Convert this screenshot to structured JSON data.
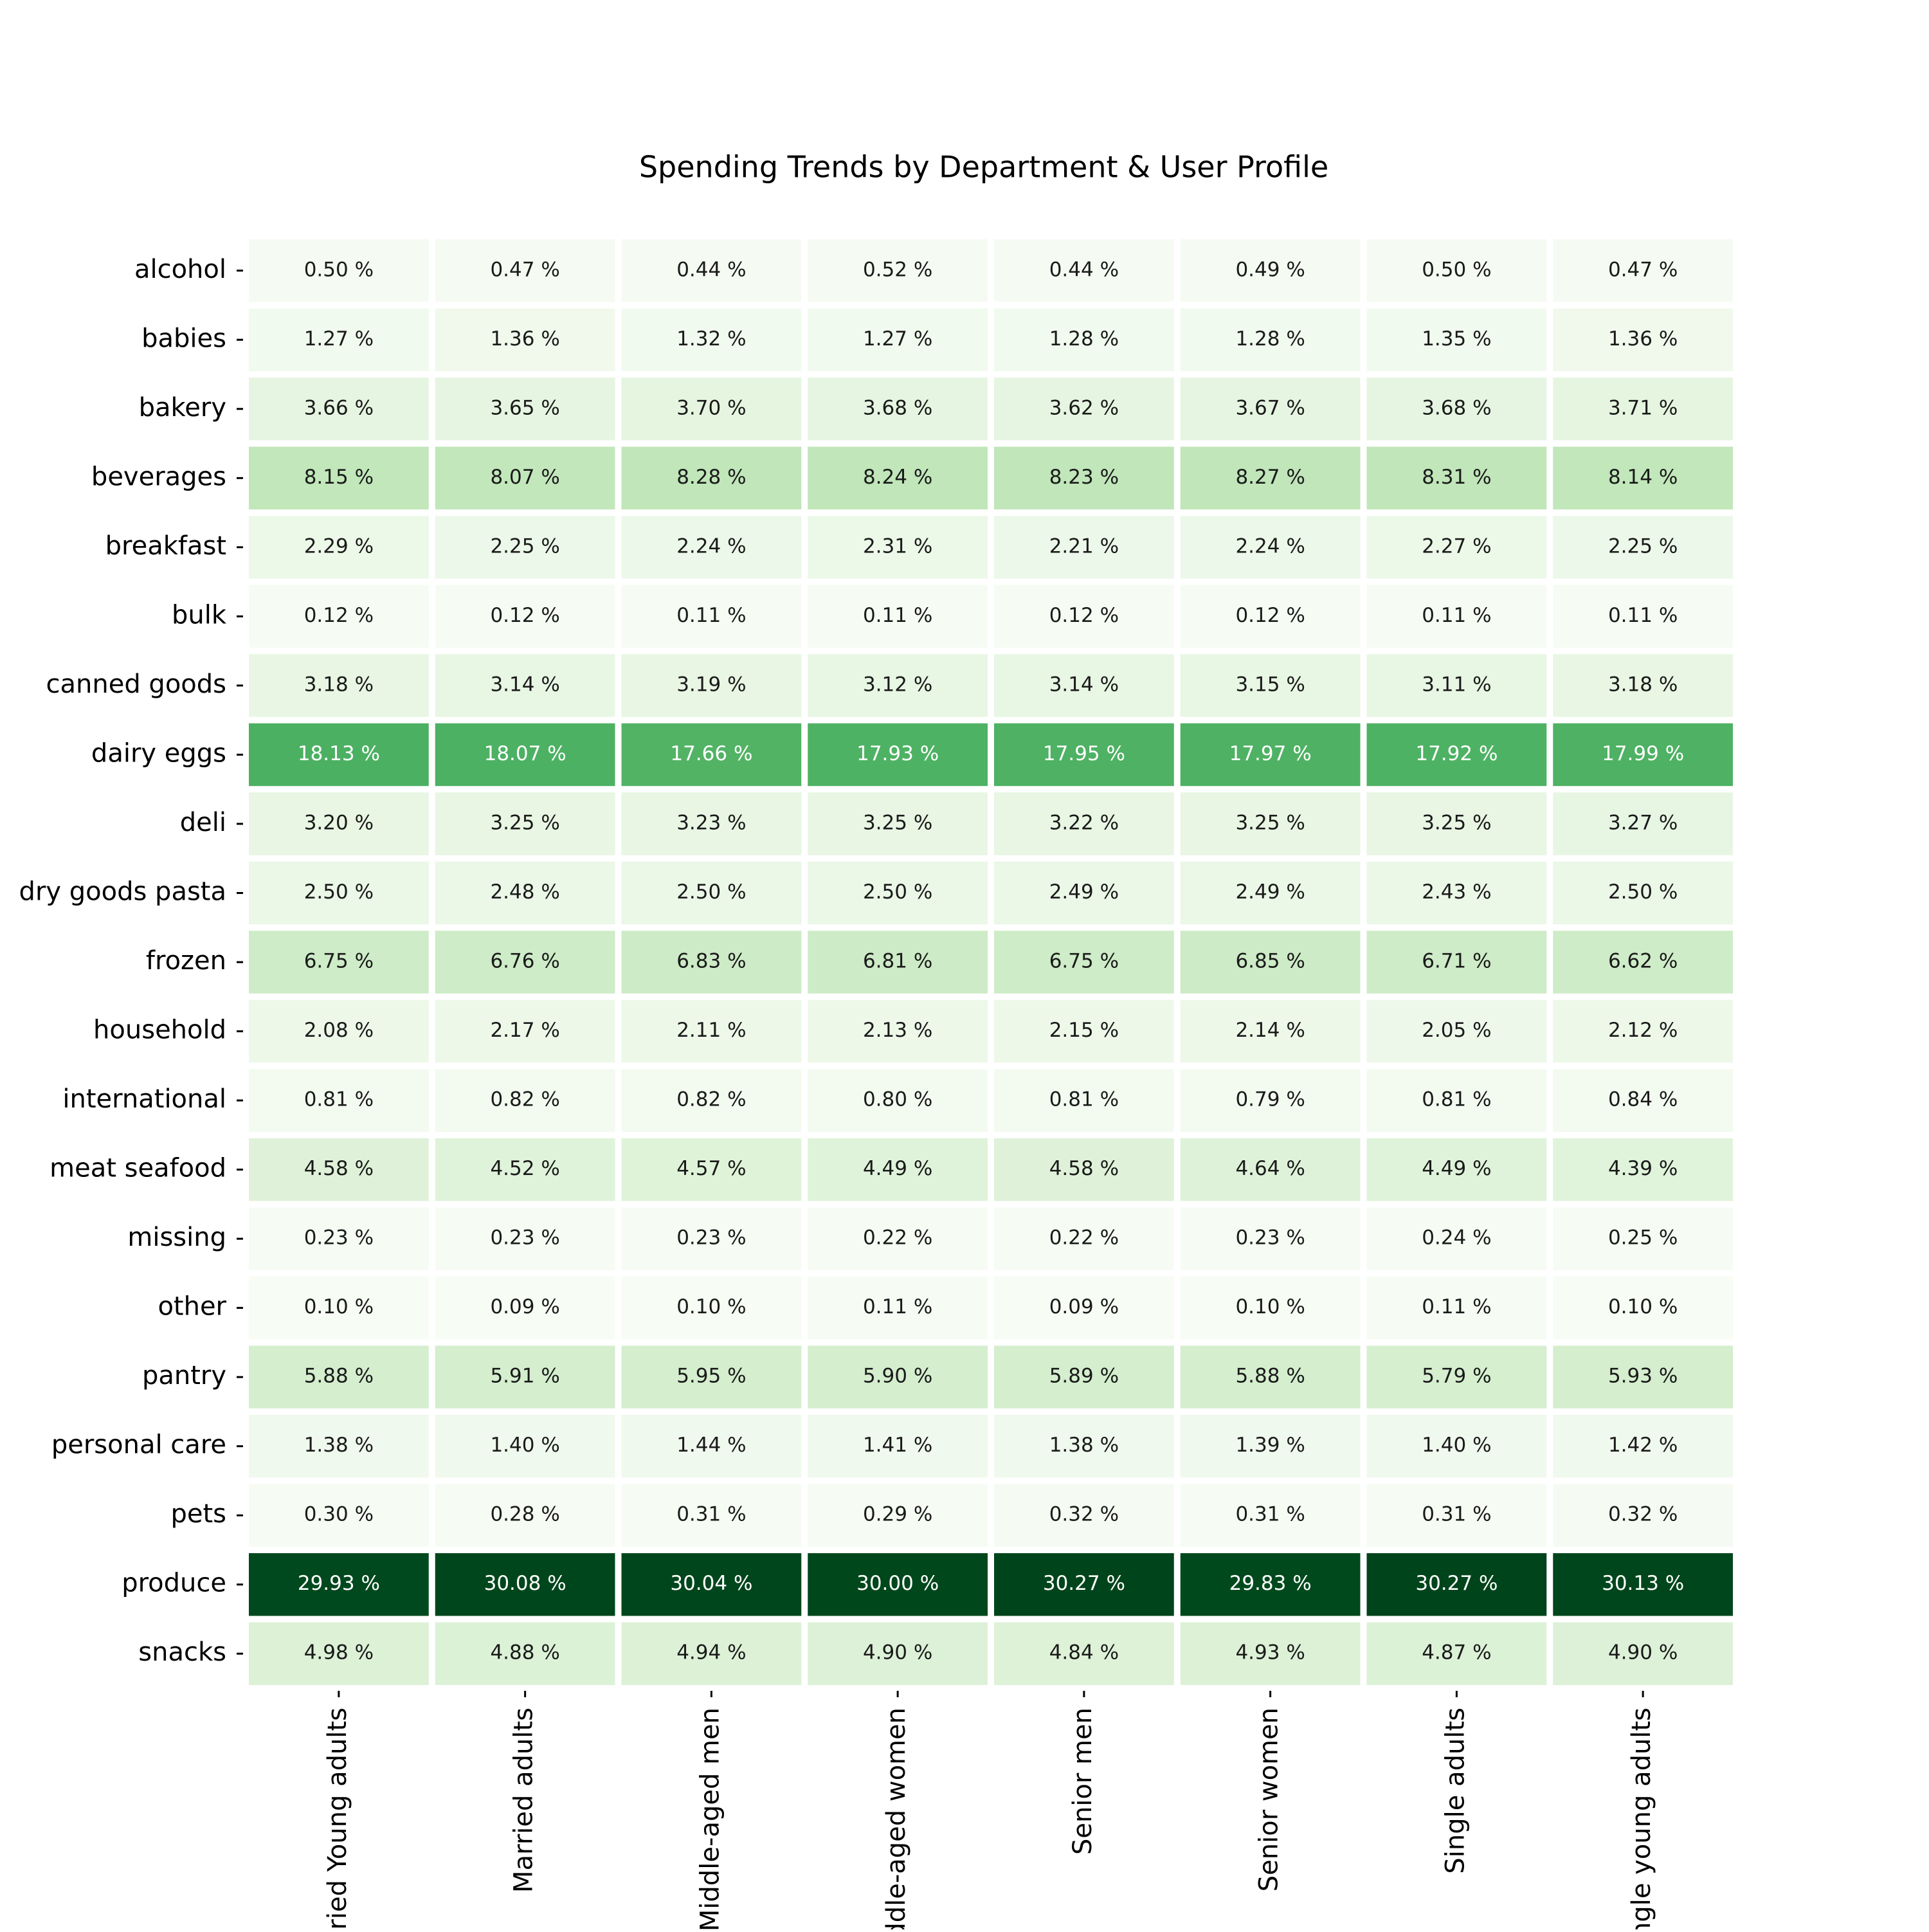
{
  "chart_data": {
    "type": "heatmap",
    "title": "Spending Trends by Department & User Profile",
    "xlabel": "",
    "ylabel": "",
    "value_suffix": " %",
    "colormap": "Greens",
    "color_range": [
      0,
      30.27
    ],
    "grid": false,
    "legend": "none",
    "colors": {
      "text_dark": "#1a1a1a",
      "text_light": "#ffffff",
      "cell_gap": "#ffffff"
    },
    "columns": [
      "Married Young adults",
      "Married adults",
      "Middle-aged men",
      "Middle-aged women",
      "Senior men",
      "Senior women",
      "Single adults",
      "Single young adults"
    ],
    "rows": [
      "alcohol",
      "babies",
      "bakery",
      "beverages",
      "breakfast",
      "bulk",
      "canned goods",
      "dairy eggs",
      "deli",
      "dry goods pasta",
      "frozen",
      "household",
      "international",
      "meat seafood",
      "missing",
      "other",
      "pantry",
      "personal care",
      "pets",
      "produce",
      "snacks"
    ],
    "values": [
      [
        0.5,
        0.47,
        0.44,
        0.52,
        0.44,
        0.49,
        0.5,
        0.47
      ],
      [
        1.27,
        1.36,
        1.32,
        1.27,
        1.28,
        1.28,
        1.35,
        1.36
      ],
      [
        3.66,
        3.65,
        3.7,
        3.68,
        3.62,
        3.67,
        3.68,
        3.71
      ],
      [
        8.15,
        8.07,
        8.28,
        8.24,
        8.23,
        8.27,
        8.31,
        8.14
      ],
      [
        2.29,
        2.25,
        2.24,
        2.31,
        2.21,
        2.24,
        2.27,
        2.25
      ],
      [
        0.12,
        0.12,
        0.11,
        0.11,
        0.12,
        0.12,
        0.11,
        0.11
      ],
      [
        3.18,
        3.14,
        3.19,
        3.12,
        3.14,
        3.15,
        3.11,
        3.18
      ],
      [
        18.13,
        18.07,
        17.66,
        17.93,
        17.95,
        17.97,
        17.92,
        17.99
      ],
      [
        3.2,
        3.25,
        3.23,
        3.25,
        3.22,
        3.25,
        3.25,
        3.27
      ],
      [
        2.5,
        2.48,
        2.5,
        2.5,
        2.49,
        2.49,
        2.43,
        2.5
      ],
      [
        6.75,
        6.76,
        6.83,
        6.81,
        6.75,
        6.85,
        6.71,
        6.62
      ],
      [
        2.08,
        2.17,
        2.11,
        2.13,
        2.15,
        2.14,
        2.05,
        2.12
      ],
      [
        0.81,
        0.82,
        0.82,
        0.8,
        0.81,
        0.79,
        0.81,
        0.84
      ],
      [
        4.58,
        4.52,
        4.57,
        4.49,
        4.58,
        4.64,
        4.49,
        4.39
      ],
      [
        0.23,
        0.23,
        0.23,
        0.22,
        0.22,
        0.23,
        0.24,
        0.25
      ],
      [
        0.1,
        0.09,
        0.1,
        0.11,
        0.09,
        0.1,
        0.11,
        0.1
      ],
      [
        5.88,
        5.91,
        5.95,
        5.9,
        5.89,
        5.88,
        5.79,
        5.93
      ],
      [
        1.38,
        1.4,
        1.44,
        1.41,
        1.38,
        1.39,
        1.4,
        1.42
      ],
      [
        0.3,
        0.28,
        0.31,
        0.29,
        0.32,
        0.31,
        0.31,
        0.32
      ],
      [
        29.93,
        30.08,
        30.04,
        30.0,
        30.27,
        29.83,
        30.27,
        30.13
      ],
      [
        4.98,
        4.88,
        4.94,
        4.9,
        4.84,
        4.93,
        4.87,
        4.9
      ]
    ]
  }
}
